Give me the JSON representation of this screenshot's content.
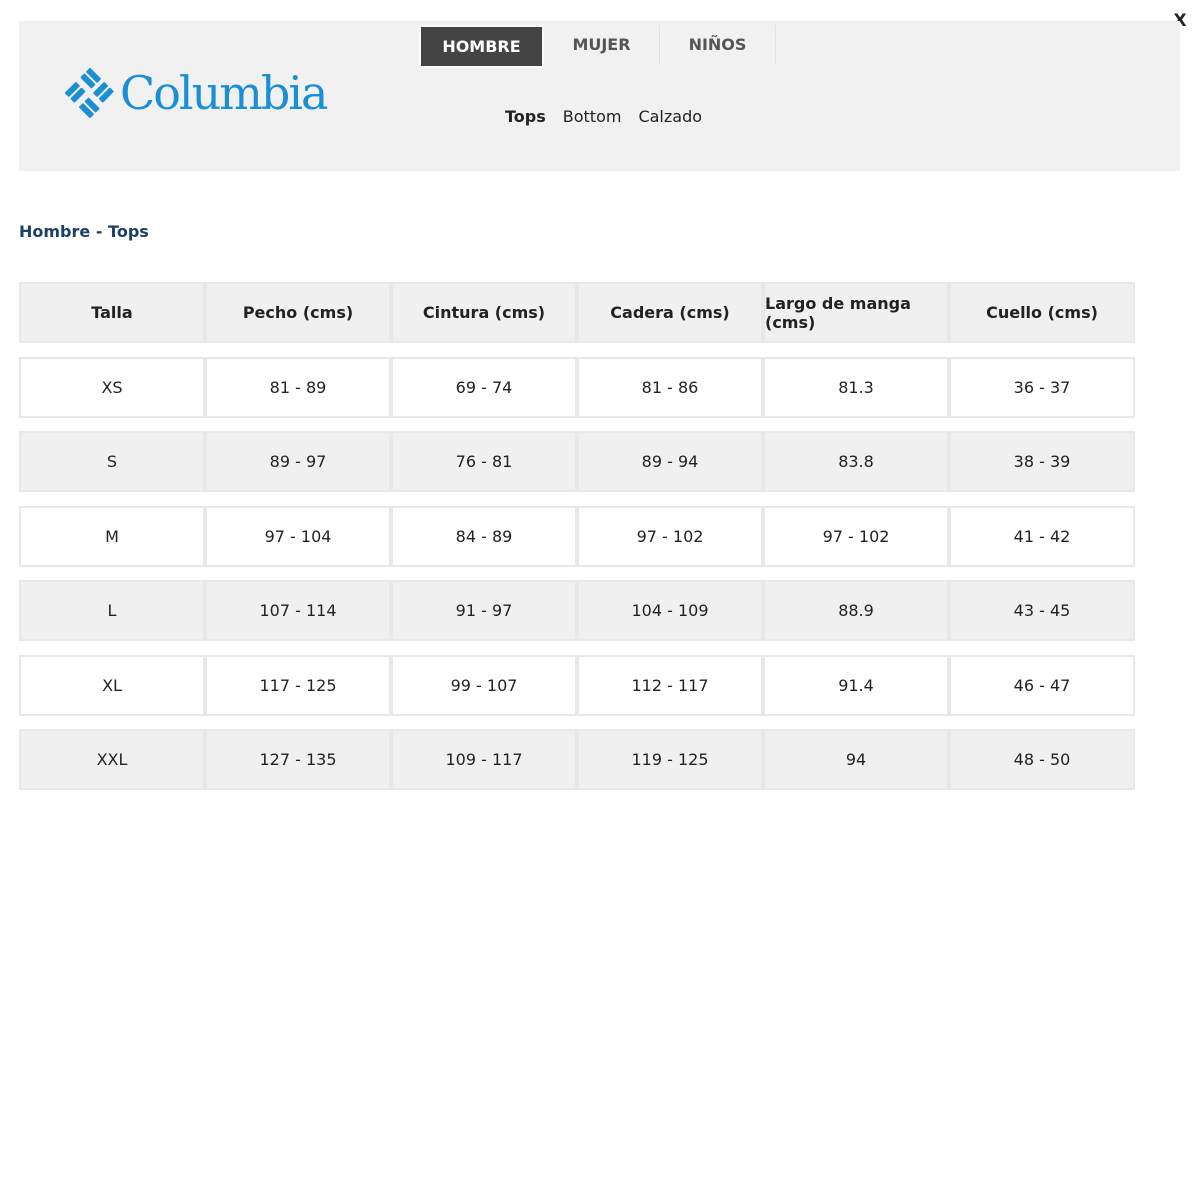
{
  "close_label": "X",
  "brand": {
    "name": "Columbia",
    "color": "#1a8fd6"
  },
  "tabs": [
    {
      "label": "HOMBRE",
      "active": true
    },
    {
      "label": "MUJER",
      "active": false
    },
    {
      "label": "NIÑOS",
      "active": false
    }
  ],
  "subnav": [
    {
      "label": "Tops",
      "active": true
    },
    {
      "label": "Bottom",
      "active": false
    },
    {
      "label": "Calzado",
      "active": false
    }
  ],
  "section_title": "Hombre - Tops",
  "table": {
    "headers": [
      "Talla",
      "Pecho (cms)",
      "Cintura (cms)",
      "Cadera (cms)",
      "Largo de manga (cms)",
      "Cuello (cms)"
    ],
    "rows": [
      [
        "XS",
        "81 - 89",
        "69 - 74",
        "81 - 86",
        "81.3",
        "36 - 37"
      ],
      [
        "S",
        "89 - 97",
        "76 - 81",
        "89 - 94",
        "83.8",
        "38 - 39"
      ],
      [
        "M",
        "97 - 104",
        "84 - 89",
        "97 - 102",
        "97 - 102",
        "41 - 42"
      ],
      [
        "L",
        "107 - 114",
        "91 - 97",
        "104 - 109",
        "88.9",
        "43 - 45"
      ],
      [
        "XL",
        "117 - 125",
        "99 - 107",
        "112 - 117",
        "91.4",
        "46 - 47"
      ],
      [
        "XXL",
        "127 - 135",
        "109 - 117",
        "119 - 125",
        "94",
        "48 - 50"
      ]
    ]
  }
}
